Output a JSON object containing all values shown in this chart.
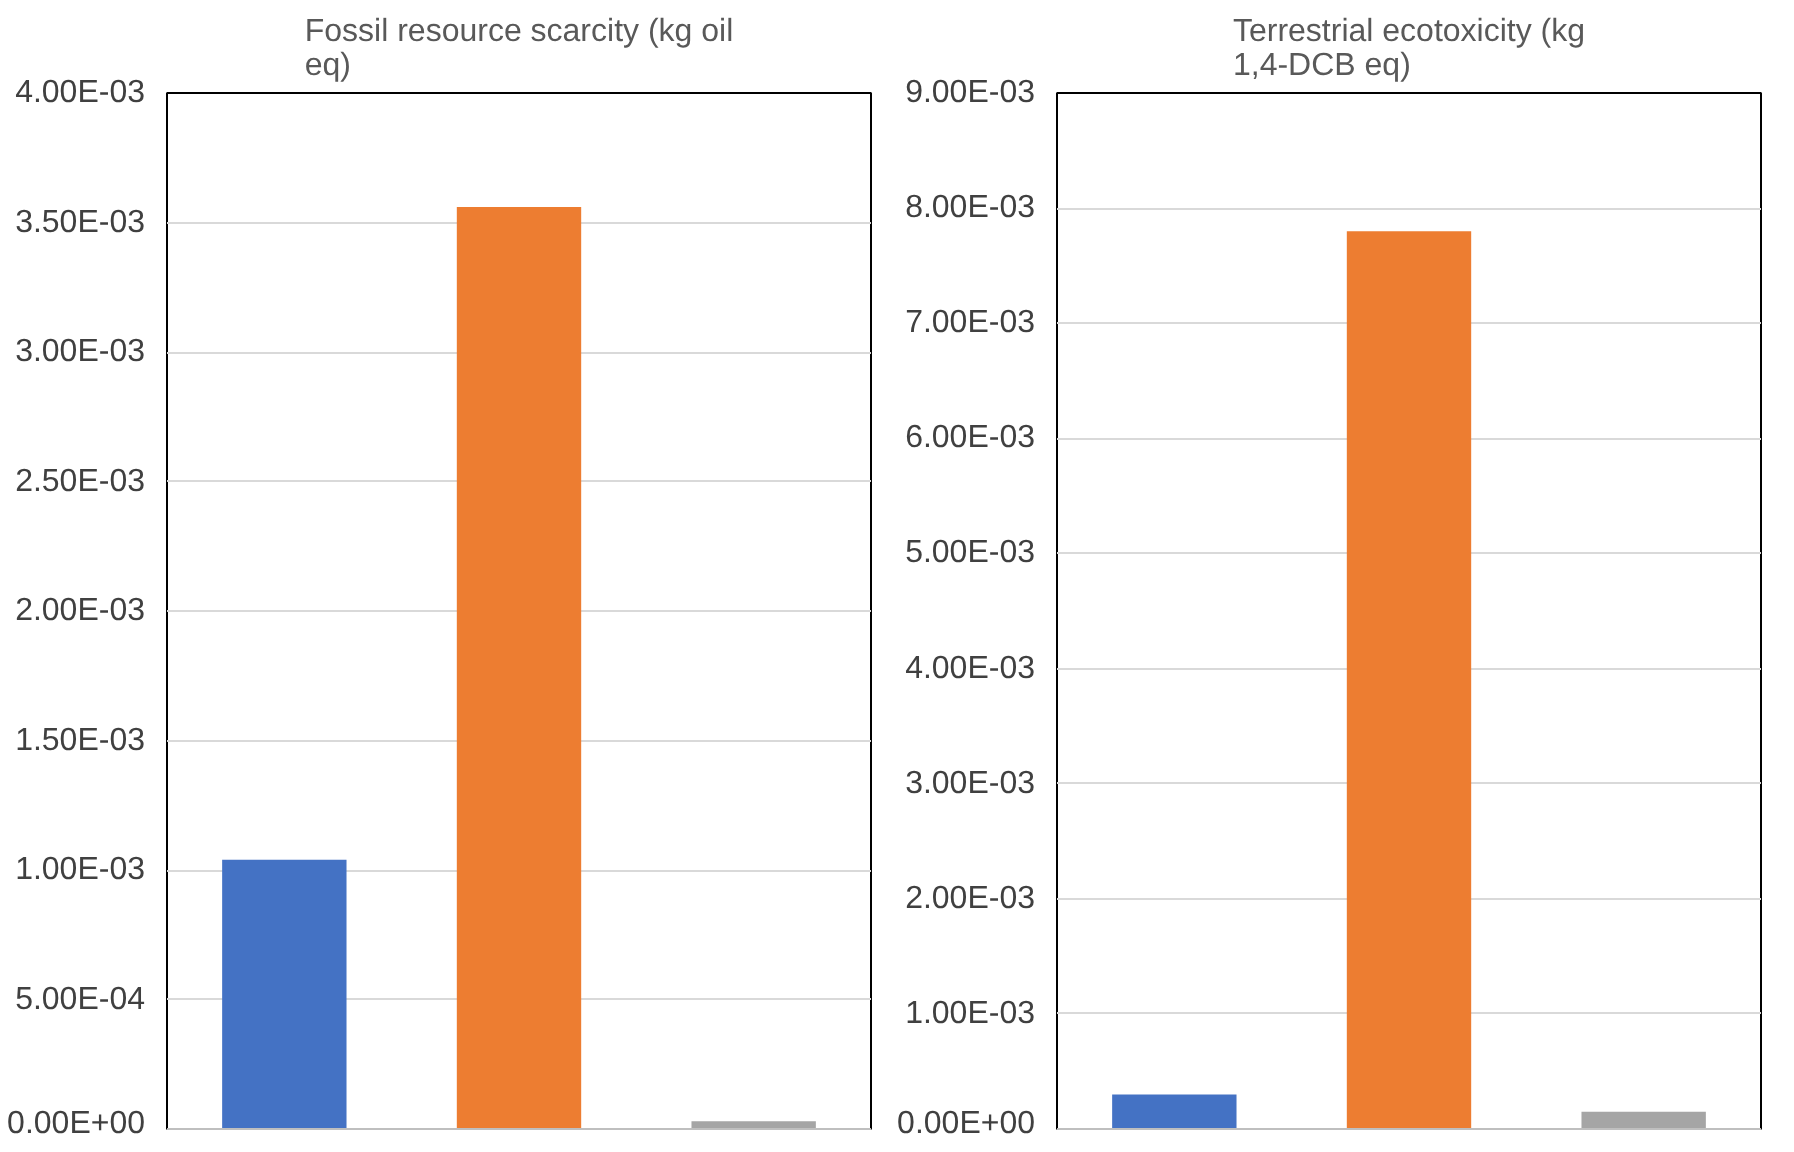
{
  "chart_data": [
    {
      "type": "bar",
      "title": "Fossil resource scarcity (kg oil eq)",
      "categories": [
        null,
        null,
        null
      ],
      "colors": [
        "#4472c4",
        "#ed7d31",
        "#a5a5a5"
      ],
      "values": [
        0.00104,
        0.00356,
        3e-05
      ],
      "ylim": [
        0,
        0.004
      ],
      "yticks": [
        {
          "value": 0,
          "label": "0.00E+00"
        },
        {
          "value": 0.0005,
          "label": "5.00E-04"
        },
        {
          "value": 0.001,
          "label": "1.00E-03"
        },
        {
          "value": 0.0015,
          "label": "1.50E-03"
        },
        {
          "value": 0.002,
          "label": "2.00E-03"
        },
        {
          "value": 0.0025,
          "label": "2.50E-03"
        },
        {
          "value": 0.003,
          "label": "3.00E-03"
        },
        {
          "value": 0.0035,
          "label": "3.50E-03"
        },
        {
          "value": 0.004,
          "label": "4.00E-03"
        }
      ],
      "grid": "y"
    },
    {
      "type": "bar",
      "title": "Terrestrial ecotoxicity (kg 1,4-DCB eq)",
      "categories": [
        null,
        null,
        null
      ],
      "colors": [
        "#4472c4",
        "#ed7d31",
        "#a5a5a5"
      ],
      "values": [
        0.0003,
        0.0078,
        0.00015
      ],
      "ylim": [
        0,
        0.009
      ],
      "yticks": [
        {
          "value": 0,
          "label": "0.00E+00"
        },
        {
          "value": 0.001,
          "label": "1.00E-03"
        },
        {
          "value": 0.002,
          "label": "2.00E-03"
        },
        {
          "value": 0.003,
          "label": "3.00E-03"
        },
        {
          "value": 0.004,
          "label": "4.00E-03"
        },
        {
          "value": 0.005,
          "label": "5.00E-03"
        },
        {
          "value": 0.006,
          "label": "6.00E-03"
        },
        {
          "value": 0.007,
          "label": "7.00E-03"
        },
        {
          "value": 0.008,
          "label": "8.00E-03"
        },
        {
          "value": 0.009,
          "label": "9.00E-03"
        }
      ],
      "grid": "y"
    }
  ]
}
